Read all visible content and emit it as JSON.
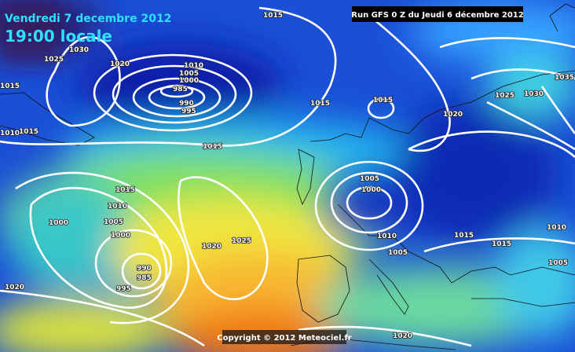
{
  "header": {
    "date": "Vendredi 7 decembre 2012",
    "time": "19:00 locale",
    "run": "Run GFS 0 Z du Jeudi 6 décembre 2012"
  },
  "footer": {
    "copyright": "Copyright © 2012 Meteociel.fr"
  },
  "isobar_labels": [
    "1015",
    "1030",
    "1025",
    "1020",
    "1010",
    "1005",
    "1000",
    "985",
    "990",
    "995",
    "1015",
    "1015",
    "1025",
    "1030",
    "1035",
    "1020",
    "1015",
    "1010",
    "1015",
    "1015",
    "1015",
    "1010",
    "1005",
    "1000",
    "1000",
    "1020",
    "1025",
    "990",
    "985",
    "995",
    "1020",
    "1000",
    "1005",
    "1010",
    "1005",
    "1015",
    "1015",
    "1010",
    "1005",
    "1020"
  ]
}
